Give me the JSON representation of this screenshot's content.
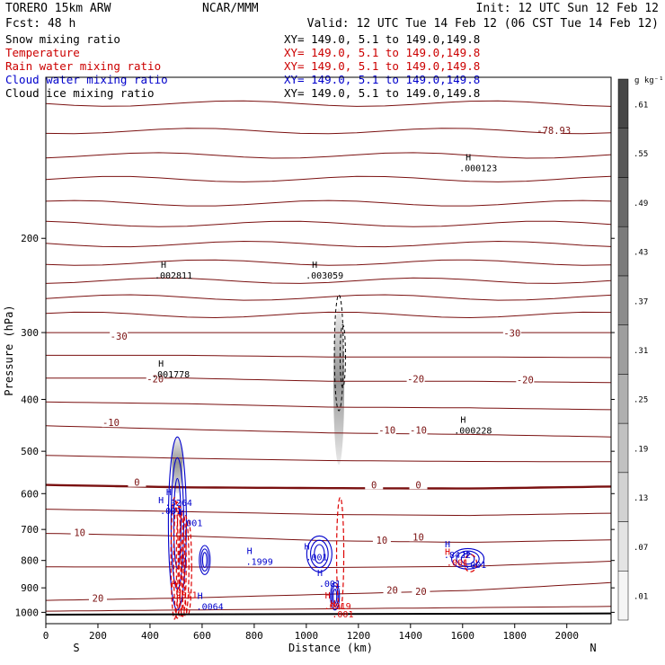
{
  "header": {
    "model": "TORERO  15km ARW",
    "center": "NCAR/MMM",
    "init": "Init: 12 UTC Sun 12 Feb 12",
    "fcst": "Fcst:   48 h",
    "valid": "Valid: 12 UTC Tue 14 Feb 12 (06 CST Tue 14 Feb 12)"
  },
  "fields": [
    {
      "name": "Snow mixing ratio",
      "xy": "",
      "color": "#000000"
    },
    {
      "name": "Temperature",
      "xy": "XY= 149.0,  5.1 to 149.0,149.8",
      "color": "#cc0000"
    },
    {
      "name": "Rain water mixing ratio",
      "xy": "XY= 149.0,  5.1 to 149.0,149.8",
      "color": "#cc0000"
    },
    {
      "name": "Cloud water mixing ratio",
      "xy": "XY= 149.0,  5.1 to 149.0,149.8",
      "color": "#0000cc"
    },
    {
      "name": "Cloud ice mixing ratio",
      "xy": "XY= 149.0,  5.1 to 149.0,149.8",
      "color": "#000000"
    }
  ],
  "snow_xy": "XY= 149.0,  5.1 to 149.0,149.8",
  "colorbar": {
    "unit": "g kg⁻¹",
    "levels": [
      ".01",
      ".07",
      ".13",
      ".19",
      ".25",
      ".31",
      ".37",
      ".43",
      ".49",
      ".55",
      ".61"
    ],
    "range": [
      0.01,
      0.67
    ]
  },
  "colors": {
    "temperature": "#7a1010",
    "rain": "#dd0000",
    "cloud_water": "#0000cc",
    "ice": "#000000"
  },
  "chart_data": {
    "type": "contour-cross-section",
    "xlabel": "Distance (km)",
    "ylabel": "Pressure (hPa)",
    "xlim": [
      0,
      2170
    ],
    "ylim": [
      1050,
      100
    ],
    "yscale": "log",
    "x_ticks": [
      0,
      200,
      400,
      600,
      800,
      1000,
      1200,
      1400,
      1600,
      1800,
      2000
    ],
    "y_ticks": [
      200,
      300,
      400,
      500,
      600,
      700,
      800,
      900,
      1000
    ],
    "x_end_labels": {
      "left": "S",
      "right": "N"
    },
    "temperature_isotherms": [
      {
        "label": "-30",
        "p": [
          300,
          300,
          300,
          300,
          300
        ]
      },
      {
        "label": "-20",
        "p": [
          365,
          365,
          370,
          370,
          372
        ]
      },
      {
        "label": "-10",
        "p": [
          448,
          455,
          462,
          465,
          470
        ]
      },
      {
        "label": "0",
        "p": [
          578,
          584,
          586,
          587,
          582
        ]
      },
      {
        "label": "10",
        "p": [
          712,
          720,
          735,
          740,
          732
        ]
      },
      {
        "label": "20",
        "p": [
          950,
          940,
          925,
          910,
          880
        ]
      }
    ],
    "temperature_labels": [
      {
        "text": "-78.93",
        "x": 1950,
        "p": 127
      },
      {
        "text": "-30",
        "x": 280,
        "p": 308
      },
      {
        "text": "-30",
        "x": 1790,
        "p": 304
      },
      {
        "text": "-20",
        "x": 420,
        "p": 370
      },
      {
        "text": "-20",
        "x": 1420,
        "p": 370
      },
      {
        "text": "-20",
        "x": 1840,
        "p": 372
      },
      {
        "text": "-10",
        "x": 250,
        "p": 447
      },
      {
        "text": "-10",
        "x": 1310,
        "p": 462
      },
      {
        "text": "-10",
        "x": 1430,
        "p": 462
      },
      {
        "text": "0",
        "x": 350,
        "p": 578
      },
      {
        "text": "0",
        "x": 1260,
        "p": 584
      },
      {
        "text": "0",
        "x": 1430,
        "p": 584
      },
      {
        "text": "10",
        "x": 130,
        "p": 718
      },
      {
        "text": "10",
        "x": 1290,
        "p": 741
      },
      {
        "text": "10",
        "x": 1430,
        "p": 731
      },
      {
        "text": "20",
        "x": 200,
        "p": 952
      },
      {
        "text": "20",
        "x": 1330,
        "p": 918
      },
      {
        "text": "20",
        "x": 1440,
        "p": 925
      }
    ],
    "max_labels": [
      {
        "text": ".002811",
        "x": 490,
        "p": 235,
        "color": "#000000"
      },
      {
        "text": ".003059",
        "x": 1070,
        "p": 235,
        "color": "#000000"
      },
      {
        "text": ".001778",
        "x": 480,
        "p": 360,
        "color": "#000000"
      },
      {
        "text": ".000228",
        "x": 1640,
        "p": 458,
        "color": "#000000"
      },
      {
        "text": ".000123",
        "x": 1660,
        "p": 148,
        "color": "#000000"
      },
      {
        "text": ".3264",
        "x": 510,
        "p": 625,
        "color": "#0000cc"
      },
      {
        "text": ".001",
        "x": 480,
        "p": 648,
        "color": "#0000cc"
      },
      {
        "text": ".001",
        "x": 560,
        "p": 682,
        "color": "#0000cc"
      },
      {
        "text": ".1999",
        "x": 820,
        "p": 805,
        "color": "#0000cc"
      },
      {
        "text": ".001",
        "x": 1040,
        "p": 790,
        "color": "#0000cc"
      },
      {
        "text": ".001",
        "x": 1090,
        "p": 885,
        "color": "#0000cc"
      },
      {
        "text": ".0064",
        "x": 630,
        "p": 977,
        "color": "#0000cc"
      },
      {
        "text": ".0019",
        "x": 1120,
        "p": 975,
        "color": "#dd0000"
      },
      {
        "text": ".9011",
        "x": 530,
        "p": 930,
        "color": "#dd0000"
      },
      {
        "text": ".8422",
        "x": 1580,
        "p": 782,
        "color": "#0000cc"
      },
      {
        "text": ".001",
        "x": 1580,
        "p": 808,
        "color": "#dd0000"
      },
      {
        "text": ".001",
        "x": 1650,
        "p": 816,
        "color": "#0000cc"
      },
      {
        "text": ".001",
        "x": 1140,
        "p": 1010,
        "color": "#dd0000"
      }
    ],
    "snow_shading": [
      {
        "x": 505,
        "p_top": 470,
        "p_bot": 600,
        "max": 0.55
      },
      {
        "x": 1125,
        "p_top": 270,
        "p_bot": 530,
        "max": 0.43
      }
    ],
    "cloud_water": [
      {
        "x": 505,
        "p_top": 470,
        "p_bot": 990
      },
      {
        "x": 610,
        "p_top": 750,
        "p_bot": 850
      },
      {
        "x": 1050,
        "p_top": 720,
        "p_bot": 840
      },
      {
        "x": 1110,
        "p_top": 880,
        "p_bot": 990
      },
      {
        "x": 1620,
        "p_top": 760,
        "p_bot": 830
      }
    ],
    "rain_water": [
      {
        "x": 520,
        "p_top": 610,
        "p_bot": 1030
      },
      {
        "x": 1130,
        "p_top": 610,
        "p_bot": 990
      },
      {
        "x": 1630,
        "p_top": 780,
        "p_bot": 840
      }
    ]
  }
}
